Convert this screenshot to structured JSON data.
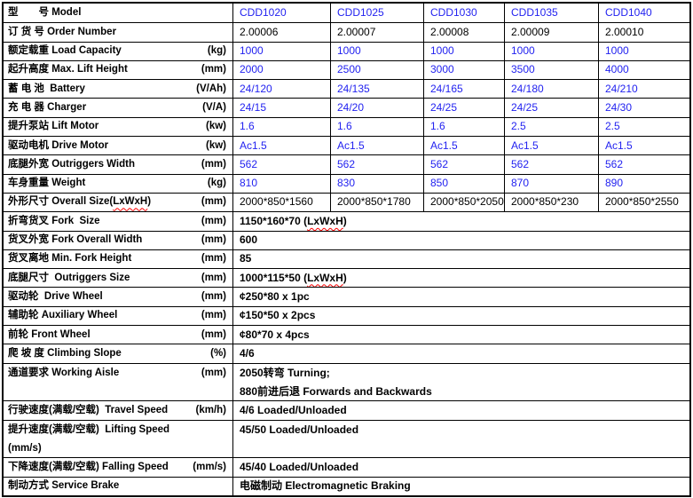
{
  "colors": {
    "value_text_blue": "#2222f0",
    "spellcheck_underline_red": "#ff0000",
    "grid_line": "#000000",
    "background": "#ffffff"
  },
  "table": {
    "rows": [
      {
        "label": "型　　号 Model",
        "unit": "",
        "values": [
          "CDD1020",
          "CDD1025",
          "CDD1030",
          "CDD1035",
          "CDD1040"
        ],
        "blue": true
      },
      {
        "label": "订 货 号 Order Number",
        "unit": "",
        "values": [
          "2.00006",
          "2.00007",
          "2.00008",
          "2.00009",
          "2.00010"
        ],
        "blue": false
      },
      {
        "label": "额定载重 Load Capacity",
        "unit": "(kg)",
        "values": [
          "1000",
          "1000",
          "1000",
          "1000",
          "1000"
        ],
        "blue": true
      },
      {
        "label": "起升高度 Max. Lift Height",
        "unit": "(mm)",
        "values": [
          "2000",
          "2500",
          "3000",
          "3500",
          "4000"
        ],
        "blue": true
      },
      {
        "label": "蓄 电 池  Battery",
        "unit": "(V/Ah)",
        "values": [
          "24/120",
          "24/135",
          "24/165",
          "24/180",
          "24/210"
        ],
        "blue": true
      },
      {
        "label": "充 电 器 Charger",
        "unit": "(V/A)",
        "values": [
          "24/15",
          "24/20",
          "24/25",
          "24/25",
          "24/30"
        ],
        "blue": true
      },
      {
        "label": "提升泵站 Lift Motor",
        "unit": "(kw)",
        "values": [
          "1.6",
          "1.6",
          "1.6",
          "2.5",
          "2.5"
        ],
        "blue": true
      },
      {
        "label": "驱动电机 Drive Motor",
        "unit": "(kw)",
        "values": [
          "Ac1.5",
          "Ac1.5",
          "Ac1.5",
          "Ac1.5",
          "Ac1.5"
        ],
        "blue": true
      },
      {
        "label": "底腿外宽 Outriggers Width",
        "unit": "(mm)",
        "values": [
          "562",
          "562",
          "562",
          "562",
          "562"
        ],
        "blue": true
      },
      {
        "label": "车身重量 Weight",
        "unit": "(kg)",
        "values": [
          "810",
          "830",
          "850",
          "870",
          "890"
        ],
        "blue": true
      },
      {
        "label": "外形尺寸 Overall Size(LxWxH)",
        "label_wavy": "LxWxH",
        "unit": "(mm)",
        "values": [
          "2000*850*1560",
          "2000*850*1780",
          "2000*850*2050",
          "2000*850*230",
          "2000*850*2550"
        ],
        "blue": false
      },
      {
        "label": "折弯货叉 Fork  Size",
        "unit": "(mm)",
        "value": "1150*160*70 (LxWxH)",
        "value_wavy": "LxWxH",
        "bold": true
      },
      {
        "label": "货叉外宽 Fork Overall Width",
        "unit": "(mm)",
        "value": "600",
        "bold": true
      },
      {
        "label": "货叉离地 Min. Fork Height",
        "unit": "(mm)",
        "value": "85",
        "bold": true
      },
      {
        "label": "底腿尺寸  Outriggers Size",
        "unit": "(mm)",
        "value": "1000*115*50 (LxWxH)",
        "value_wavy": "LxWxH",
        "bold": true
      },
      {
        "label": "驱动轮  Drive Wheel",
        "unit": "(mm)",
        "value": "¢250*80 x 1pc",
        "bold": true
      },
      {
        "label": "辅助轮 Auxiliary Wheel",
        "unit": "(mm)",
        "value": "¢150*50 x 2pcs",
        "bold": true
      },
      {
        "label": "前轮 Front Wheel",
        "unit": "(mm)",
        "value": "¢80*70 x 4pcs",
        "bold": true
      },
      {
        "label": "爬 坡 度 Climbing Slope",
        "unit": "(%)",
        "value": "4/6",
        "bold": true
      },
      {
        "label": "通道要求 Working Aisle",
        "unit": "(mm)",
        "value_lines": [
          "2050转弯 Turning;",
          "880前进后退 Forwards and Backwards"
        ],
        "bold": true,
        "double": true
      },
      {
        "label": "行驶速度(满载/空载)  Travel Speed",
        "unit": "(km/h)",
        "value": "4/6 Loaded/Unloaded",
        "bold": true
      },
      {
        "label": "提升速度(满载/空载)  Lifting Speed",
        "label2": "(mm/s)",
        "unit": "",
        "value": "45/50 Loaded/Unloaded",
        "bold": true,
        "double": true
      },
      {
        "label": "下降速度(满载/空载) Falling Speed",
        "unit": "(mm/s)",
        "value": "45/40 Loaded/Unloaded",
        "bold": true
      },
      {
        "label": "制动方式 Service Brake",
        "unit": "",
        "value": "电磁制动 Electromagnetic Braking",
        "bold": true
      }
    ]
  }
}
